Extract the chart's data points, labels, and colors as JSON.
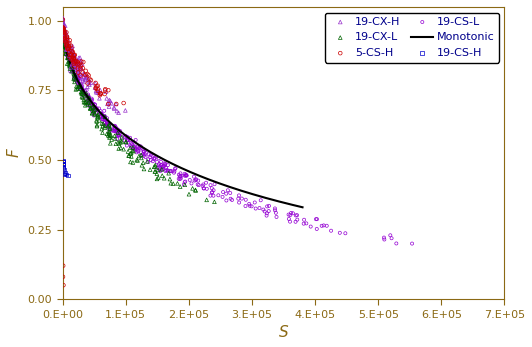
{
  "title": "",
  "xlabel": "S",
  "ylabel": "F",
  "xlim": [
    0,
    700000
  ],
  "ylim": [
    0.0,
    1.05
  ],
  "yticks": [
    0.0,
    0.25,
    0.5,
    0.75,
    1.0
  ],
  "ytick_labels": [
    "0.00",
    "0.25",
    "0.50",
    "0.75",
    "1.00"
  ],
  "xticks": [
    0,
    100000,
    200000,
    300000,
    400000,
    500000,
    600000,
    700000
  ],
  "xtick_labels": [
    "0.E+00",
    "1.E+05",
    "2.E+05",
    "3.E+05",
    "4.E+05",
    "5.E+05",
    "6.E+05",
    "7.E+05"
  ],
  "background_color": "#ffffff",
  "axis_color": "#8B6914",
  "tick_color": "#8B6914",
  "label_color": "#8B6914",
  "legend_label_color": "#00008B",
  "tick_fontsize": 8,
  "label_fontsize": 11,
  "legend_fontsize": 8
}
